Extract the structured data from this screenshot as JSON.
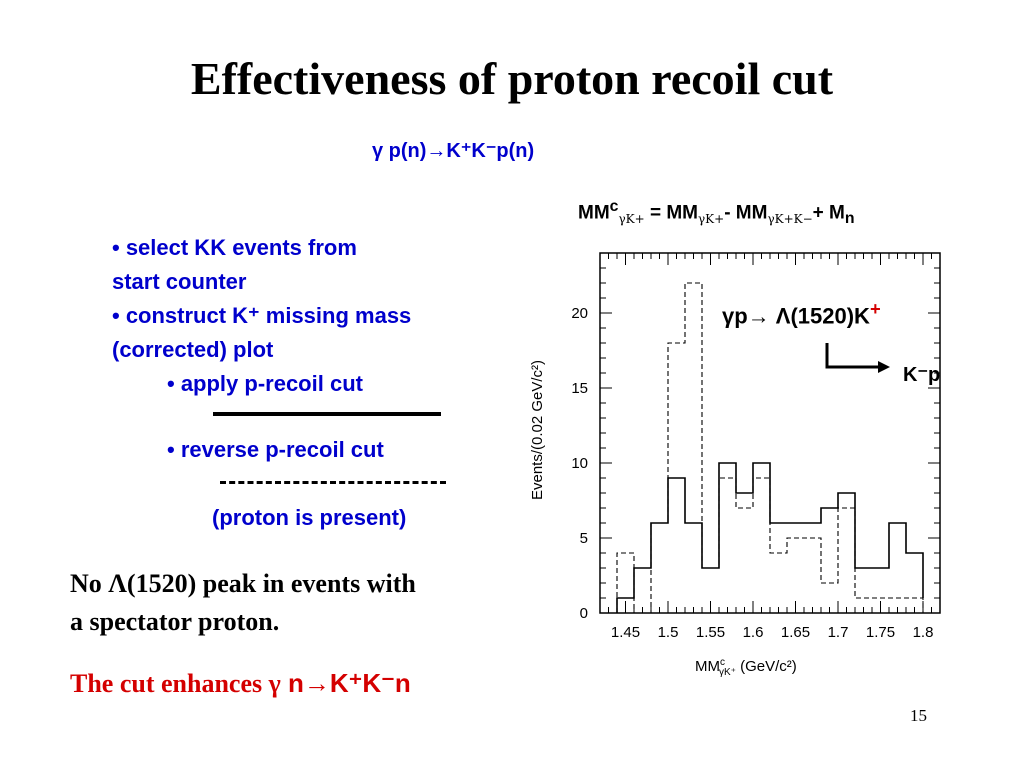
{
  "slide": {
    "title": "Effectiveness of proton recoil cut",
    "reaction": "γ p(n)→K⁺K⁻p(n)",
    "formula": {
      "lhs": "MM",
      "lhs_sup": "c",
      "lhs_sub": "γK+",
      "eq": " = MM",
      "sub2": "γK+",
      "minus": "- MM",
      "sub3": "γK+K−",
      "plus": "+ M",
      "sub4": "n"
    },
    "bullets": [
      {
        "text": "• select KK events from",
        "indent": false
      },
      {
        "text": "start counter",
        "indent": false
      },
      {
        "text": "• construct K⁺ missing mass",
        "indent": false
      },
      {
        "text": "(corrected) plot",
        "indent": false
      },
      {
        "text": "• apply p-recoil cut",
        "indent": true
      }
    ],
    "reverse_bullet": "• reverse p-recoil cut",
    "proton_note": "(proton is present)",
    "conclusion_line1": "No Λ(1520) peak in events with",
    "conclusion_line2": "a spectator proton.",
    "enhance_prefix": "The cut enhances γ",
    "enhance_suffix": " n→K⁺K⁻n",
    "page_number": "15",
    "colors": {
      "blue_text": "#0000cc",
      "red_text": "#d40000"
    }
  },
  "chart_data": {
    "type": "histogram",
    "xlabel": "MM",
    "xlabel_sup": "c",
    "xlabel_sub": "γK⁺",
    "xlabel_unit": " (GeV/c²)",
    "ylabel": "Events/(0.02 GeV/c²)",
    "xlim": [
      1.42,
      1.82
    ],
    "ylim": [
      0,
      24
    ],
    "xticks": [
      "1.45",
      "1.5",
      "1.55",
      "1.6",
      "1.65",
      "1.7",
      "1.75",
      "1.8"
    ],
    "xtick_values": [
      1.45,
      1.5,
      1.55,
      1.6,
      1.65,
      1.7,
      1.75,
      1.8
    ],
    "yticks": [
      "0",
      "5",
      "10",
      "15",
      "20"
    ],
    "ytick_values": [
      0,
      5,
      10,
      15,
      20
    ],
    "bin_edges": [
      1.44,
      1.46,
      1.48,
      1.5,
      1.52,
      1.54,
      1.56,
      1.58,
      1.6,
      1.62,
      1.64,
      1.66,
      1.68,
      1.7,
      1.72,
      1.74,
      1.76,
      1.78,
      1.8
    ],
    "series": [
      {
        "style": "solid",
        "values": [
          1,
          3,
          6,
          9,
          6,
          3,
          10,
          8,
          10,
          6,
          6,
          6,
          7,
          8,
          3,
          3,
          6,
          4,
          1
        ]
      },
      {
        "style": "dashed",
        "values": [
          4,
          0,
          6,
          18,
          22,
          3,
          9,
          7,
          9,
          4,
          5,
          5,
          2,
          7,
          1,
          1,
          1,
          1,
          0
        ]
      }
    ],
    "annotation": {
      "text_prefix": "γp→ Λ(1520)K",
      "text_sup": "+",
      "decay": "K⁻p"
    }
  }
}
